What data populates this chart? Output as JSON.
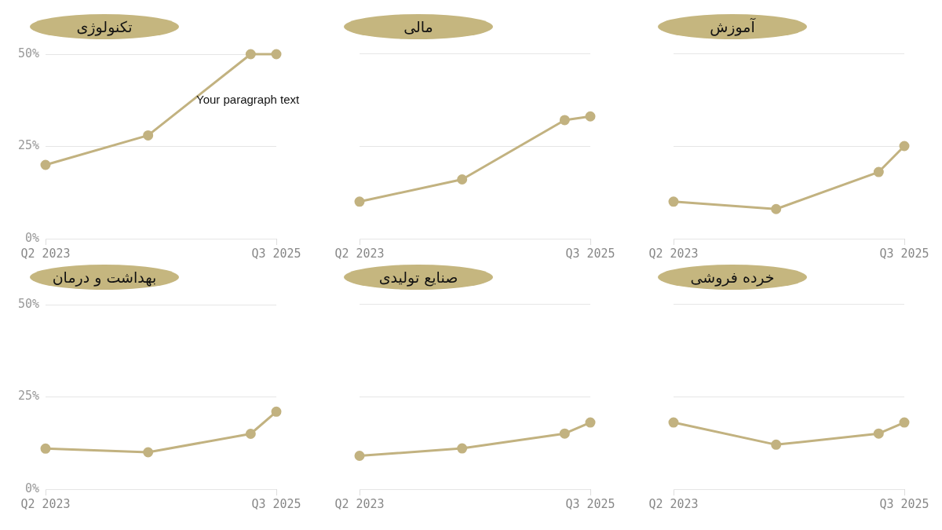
{
  "chart_data": [
    {
      "type": "line",
      "title": "تکنولوژی",
      "x": [
        "2023-04",
        "2024-04",
        "2025-04",
        "2025-07"
      ],
      "series": [
        {
          "color": "#c2b280",
          "values": [
            20,
            28,
            50,
            50
          ]
        }
      ],
      "xlim": [
        "2023-04",
        "2025-07"
      ],
      "xticks": [
        {
          "value": "2023-04",
          "label": "Q2 2023"
        },
        {
          "value": "2025-07",
          "label": "Q3 2025"
        }
      ],
      "ylim": [
        0,
        50
      ],
      "yticks": [
        {
          "value": 0,
          "label": "0%"
        },
        {
          "value": 25,
          "label": "25%"
        },
        {
          "value": 50,
          "label": "50%"
        }
      ],
      "grid": "y",
      "marker": "circle",
      "annotations": [
        "Your paragraph text"
      ]
    },
    {
      "type": "line",
      "title": "مالی",
      "x": [
        "2023-04",
        "2024-04",
        "2025-04",
        "2025-07"
      ],
      "series": [
        {
          "color": "#c2b280",
          "values": [
            10,
            16,
            32,
            33
          ]
        }
      ],
      "xlim": [
        "2023-04",
        "2025-07"
      ],
      "xticks": [
        {
          "value": "2023-04",
          "label": "Q2 2023"
        },
        {
          "value": "2025-07",
          "label": "Q3 2025"
        }
      ],
      "ylim": [
        0,
        50
      ],
      "yticks": [
        0,
        25,
        50
      ],
      "grid": "y",
      "marker": "circle",
      "tick_labels": "x"
    },
    {
      "type": "line",
      "title": "آموزش",
      "x": [
        "2023-04",
        "2024-04",
        "2025-04",
        "2025-07"
      ],
      "series": [
        {
          "color": "#c2b280",
          "values": [
            10,
            8,
            18,
            25
          ]
        }
      ],
      "xlim": [
        "2023-04",
        "2025-07"
      ],
      "xticks": [
        {
          "value": "2023-04",
          "label": "Q2 2023"
        },
        {
          "value": "2025-07",
          "label": "Q3 2025"
        }
      ],
      "ylim": [
        0,
        50
      ],
      "yticks": [
        0,
        25,
        50
      ],
      "grid": "y",
      "marker": "circle",
      "tick_labels": "x"
    },
    {
      "type": "line",
      "title": "بهداشت و درمان",
      "x": [
        "2023-04",
        "2024-04",
        "2025-04",
        "2025-07"
      ],
      "series": [
        {
          "color": "#c2b280",
          "values": [
            11,
            10,
            15,
            21
          ]
        }
      ],
      "xlim": [
        "2023-04",
        "2025-07"
      ],
      "xticks": [
        {
          "value": "2023-04",
          "label": "Q2 2023"
        },
        {
          "value": "2025-07",
          "label": "Q3 2025"
        }
      ],
      "ylim": [
        0,
        50
      ],
      "yticks": [
        {
          "value": 0,
          "label": "0%"
        },
        {
          "value": 25,
          "label": "25%"
        },
        {
          "value": 50,
          "label": "50%"
        }
      ],
      "grid": "y",
      "marker": "circle"
    },
    {
      "type": "line",
      "title": "صنایع تولیدی",
      "x": [
        "2023-04",
        "2024-04",
        "2025-04",
        "2025-07"
      ],
      "series": [
        {
          "color": "#c2b280",
          "values": [
            9,
            11,
            15,
            18
          ]
        }
      ],
      "xlim": [
        "2023-04",
        "2025-07"
      ],
      "xticks": [
        {
          "value": "2023-04",
          "label": "Q2 2023"
        },
        {
          "value": "2025-07",
          "label": "Q3 2025"
        }
      ],
      "ylim": [
        0,
        50
      ],
      "yticks": [
        0,
        25,
        50
      ],
      "grid": "y",
      "marker": "circle",
      "tick_labels": "x"
    },
    {
      "type": "line",
      "title": "خرده فروشی",
      "x": [
        "2023-04",
        "2024-04",
        "2025-04",
        "2025-07"
      ],
      "series": [
        {
          "color": "#c2b280",
          "values": [
            18,
            12,
            15,
            18
          ]
        }
      ],
      "xlim": [
        "2023-04",
        "2025-07"
      ],
      "xticks": [
        {
          "value": "2023-04",
          "label": "Q2 2023"
        },
        {
          "value": "2025-07",
          "label": "Q3 2025"
        }
      ],
      "ylim": [
        0,
        50
      ],
      "yticks": [
        0,
        25,
        50
      ],
      "grid": "y",
      "marker": "circle",
      "tick_labels": "x"
    }
  ]
}
